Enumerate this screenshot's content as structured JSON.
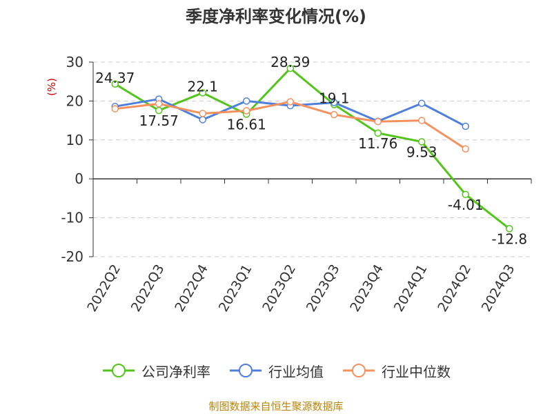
{
  "chart_data": {
    "type": "line",
    "title": "季度净利率变化情况(%)",
    "ylabel": "(%)",
    "xlabel": "",
    "categories": [
      "2022Q2",
      "2022Q3",
      "2022Q4",
      "2023Q1",
      "2023Q2",
      "2023Q3",
      "2023Q4",
      "2024Q1",
      "2024Q2",
      "2024Q3"
    ],
    "ylim": [
      -20,
      30
    ],
    "yticks": [
      30,
      20,
      10,
      0,
      -10,
      -20
    ],
    "grid": true,
    "legend_position": "bottom",
    "series": [
      {
        "name": "公司净利率",
        "color": "#52c41a",
        "values": [
          24.37,
          17.57,
          22.1,
          16.61,
          28.39,
          19.1,
          11.76,
          9.53,
          -4.01,
          -12.8
        ],
        "labels": [
          "24.37",
          "17.57",
          "22.1",
          "16.61",
          "28.39",
          "19.1",
          "11.76",
          "9.53",
          "-4.01",
          "-12.8"
        ]
      },
      {
        "name": "行业均值",
        "color": "#4e7fdc",
        "values": [
          18.6,
          20.5,
          15.2,
          20.0,
          18.8,
          19.6,
          14.8,
          19.4,
          13.5,
          null
        ]
      },
      {
        "name": "行业中位数",
        "color": "#f4915e",
        "values": [
          18.0,
          19.3,
          16.8,
          17.5,
          19.8,
          16.5,
          14.7,
          15.0,
          7.7,
          null
        ]
      }
    ]
  },
  "source": "制图数据来自恒生聚源数据库"
}
